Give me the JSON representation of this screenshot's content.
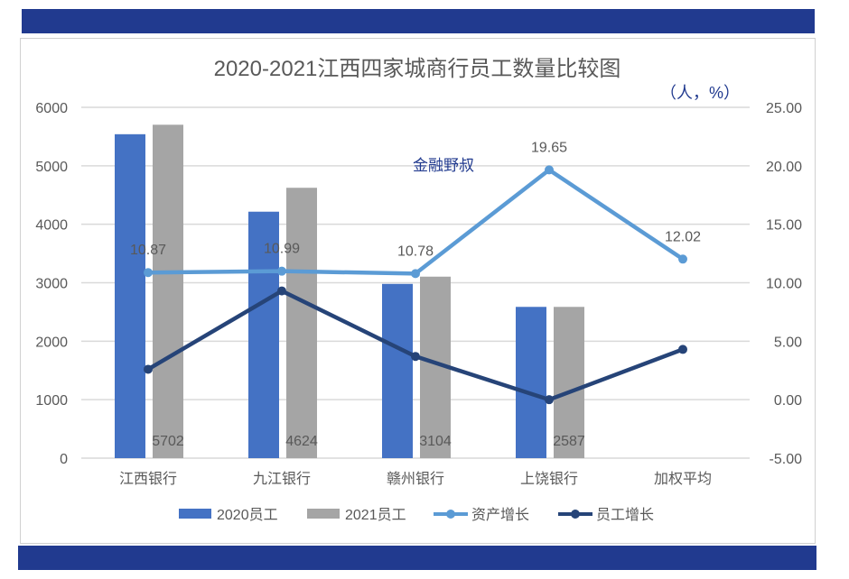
{
  "chart_data": {
    "type": "bar+line",
    "title": "2020-2021江西四家城商行员工数量比较图",
    "unit_label": "（人，%）",
    "watermark": "金融野叔",
    "categories": [
      "江西银行",
      "九江银行",
      "赣州银行",
      "上饶银行",
      "加权平均"
    ],
    "y_left": {
      "range": [
        0,
        6000
      ],
      "ticks": [
        "0",
        "1000",
        "2000",
        "3000",
        "4000",
        "5000",
        "6000"
      ]
    },
    "y_right": {
      "range": [
        -5,
        25
      ],
      "ticks": [
        "-5.00",
        "0.00",
        "5.00",
        "10.00",
        "15.00",
        "20.00",
        "25.00"
      ]
    },
    "grid": true,
    "legend_position": "bottom",
    "series": [
      {
        "name": "2020员工",
        "type": "bar",
        "axis": "left",
        "color": "#4472c4",
        "values": [
          5540,
          4215,
          2980,
          2587,
          null
        ]
      },
      {
        "name": "2021员工",
        "type": "bar",
        "axis": "left",
        "color": "#a5a5a5",
        "values": [
          5702,
          4624,
          3104,
          2587,
          null
        ],
        "labels": [
          "5702",
          "4624",
          "3104",
          "2587",
          ""
        ]
      },
      {
        "name": "资产增长",
        "type": "line",
        "axis": "right",
        "color": "#5b9bd5",
        "values": [
          10.87,
          10.99,
          10.78,
          19.65,
          12.02
        ],
        "labels": [
          "10.87",
          "10.99",
          "10.78",
          "19.65",
          "12.02"
        ]
      },
      {
        "name": "员工增长",
        "type": "line",
        "axis": "right",
        "color": "#264478",
        "values": [
          2.6,
          9.3,
          3.7,
          0.0,
          4.3
        ]
      }
    ]
  }
}
